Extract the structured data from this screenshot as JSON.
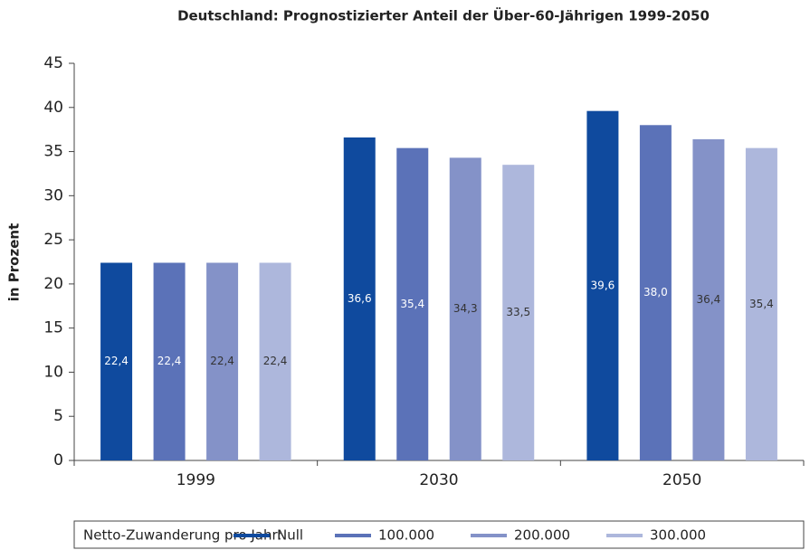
{
  "chart_data": {
    "type": "bar",
    "title": "Deutschland: Prognostizierter Anteil der Über-60-Jährigen 1999-2050",
    "y_label": "in Prozent",
    "legend_title": "Netto-Zuwanderung pro Jahr:",
    "legend": "bottom",
    "categories": [
      "1999",
      "2030",
      "2050"
    ],
    "series": [
      {
        "name": "Null",
        "color": "#0f4a9e",
        "values": [
          22.4,
          36.6,
          39.6
        ],
        "value_labels": [
          "22,4",
          "36,6",
          "39,6"
        ]
      },
      {
        "name": "100.000",
        "color": "#5b72b8",
        "values": [
          22.4,
          35.4,
          38.0
        ],
        "value_labels": [
          "22,4",
          "35,4",
          "38,0"
        ]
      },
      {
        "name": "200.000",
        "color": "#8492c8",
        "values": [
          22.4,
          34.3,
          36.4
        ],
        "value_labels": [
          "22,4",
          "34,3",
          "36,4"
        ]
      },
      {
        "name": "300.000",
        "color": "#adb7dc",
        "values": [
          22.4,
          33.5,
          35.4
        ],
        "value_labels": [
          "22,4",
          "33,5",
          "35,4"
        ]
      }
    ],
    "ylim": [
      0,
      45
    ],
    "yticks": [
      0,
      5,
      10,
      15,
      20,
      25,
      30,
      35,
      40,
      45
    ]
  }
}
